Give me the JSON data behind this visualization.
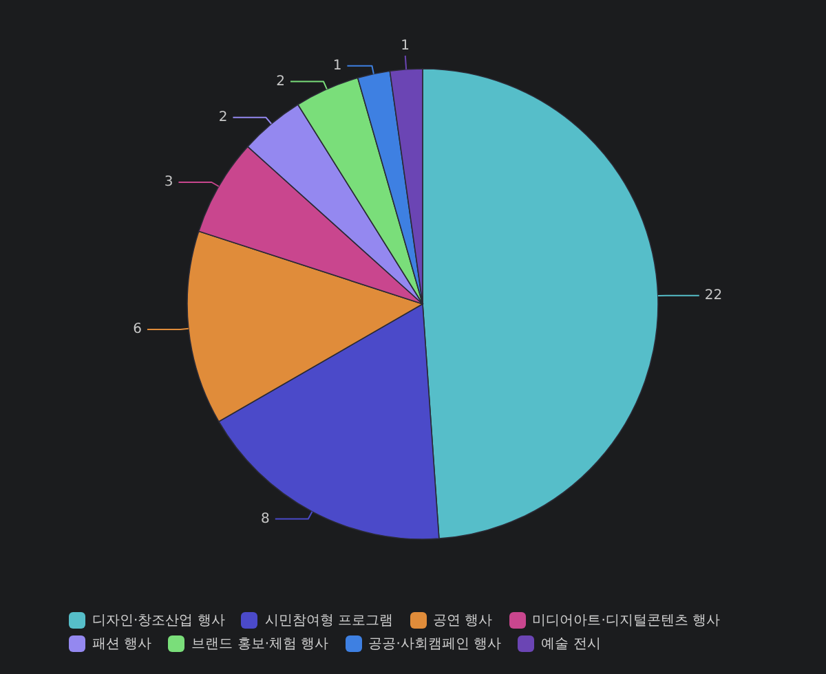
{
  "chart_data": {
    "type": "pie",
    "categories": [
      "디자인·창조산업 행사",
      "시민참여형 프로그램",
      "공연 행사",
      "미디어아트·디지털콘텐츠 행사",
      "패션 행사",
      "브랜드 홍보·체험 행사",
      "공공·사회캠페인 행사",
      "예술 전시"
    ],
    "values": [
      22,
      8,
      6,
      3,
      2,
      2,
      1,
      1
    ],
    "colors": [
      "#56bec9",
      "#4b4ac9",
      "#e08c3a",
      "#c9468e",
      "#9488f0",
      "#7ade7a",
      "#3e80e2",
      "#6b45b4"
    ],
    "data_labels": true,
    "legend": "bottom"
  }
}
